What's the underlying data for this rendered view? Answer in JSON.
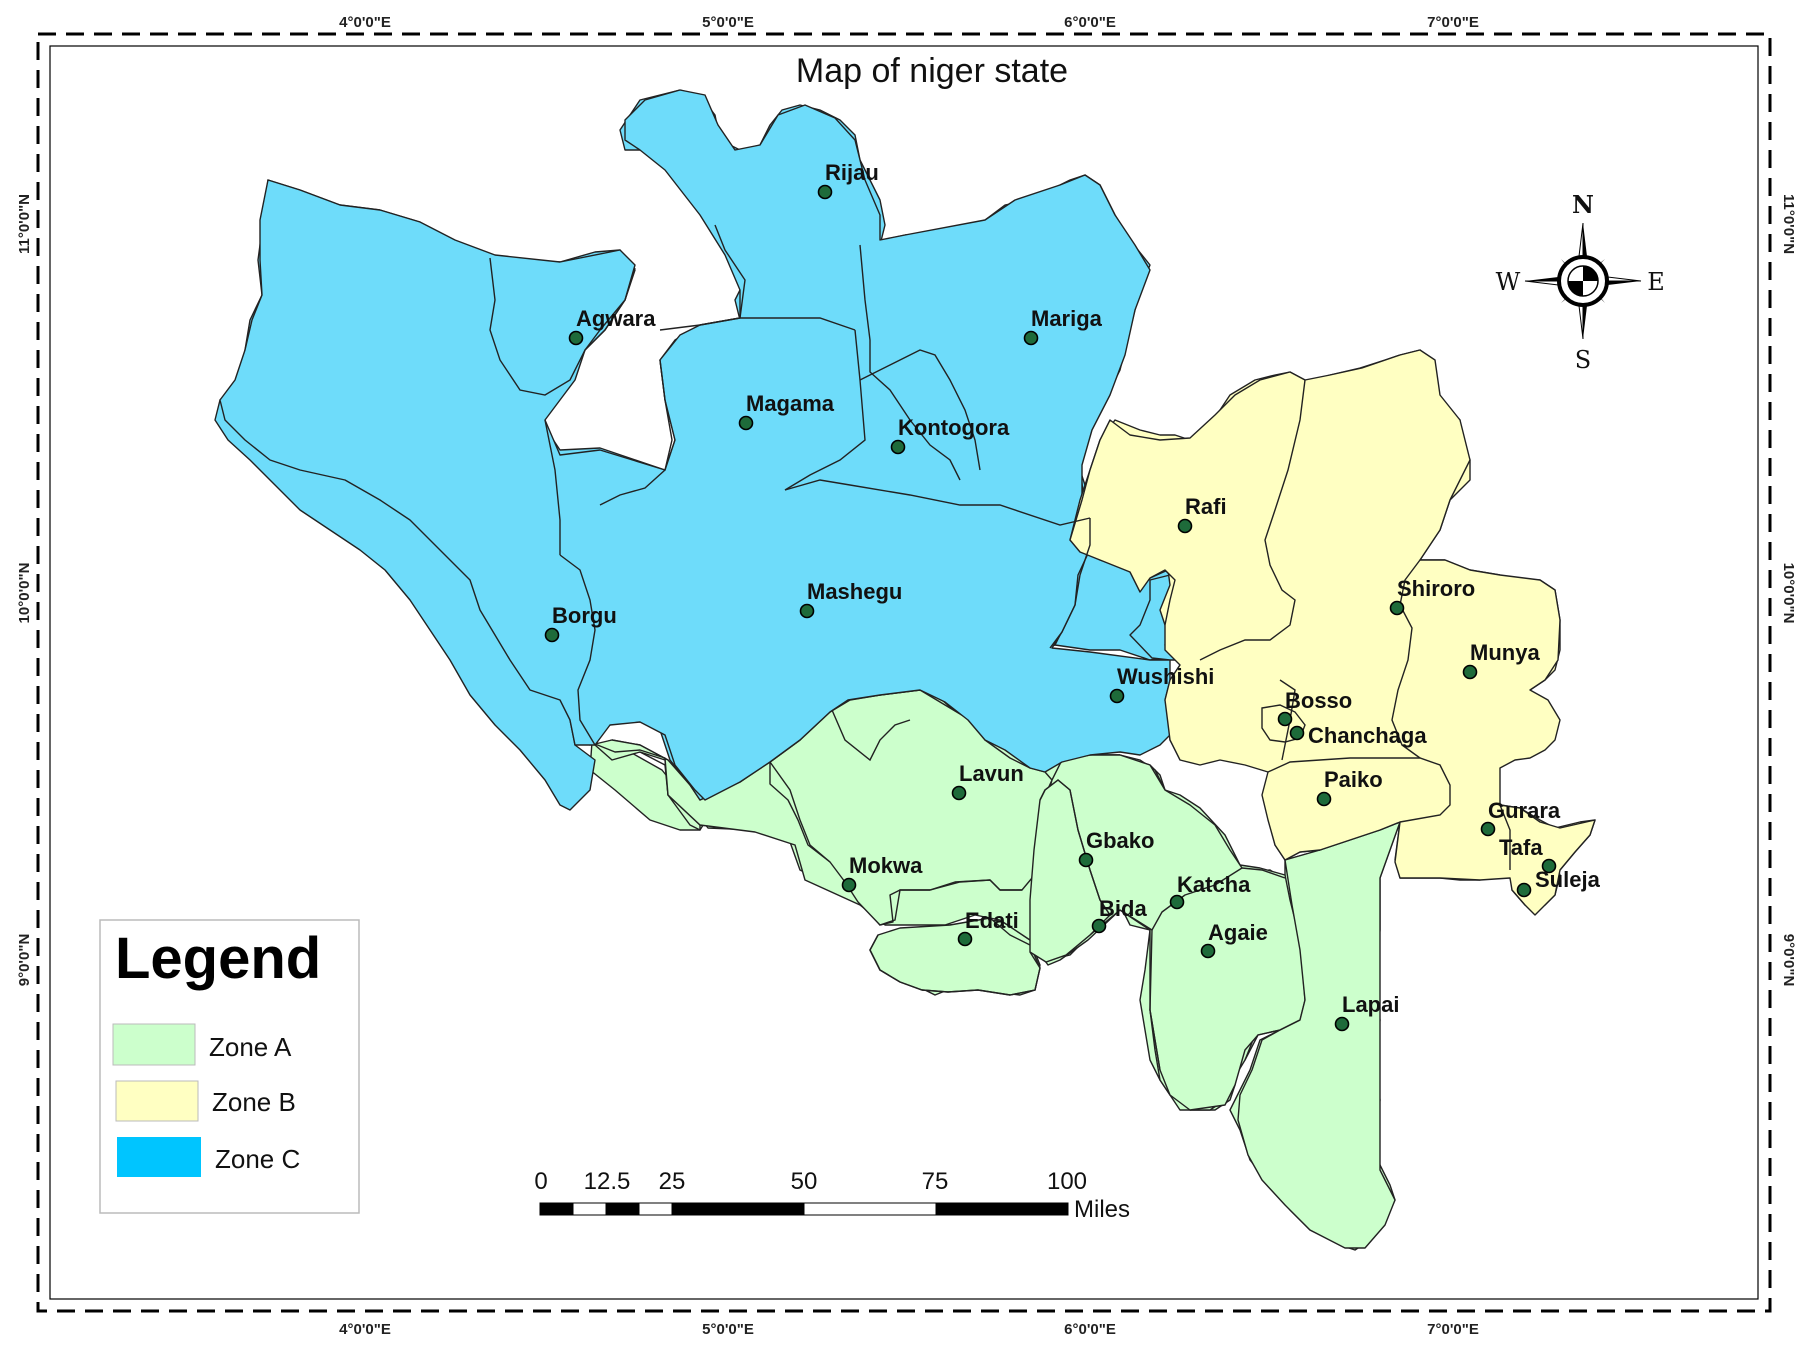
{
  "title": "Map of niger state",
  "colors": {
    "zone_a": "#ccffcc",
    "zone_b": "#ffffc2",
    "zone_c": "#6edcfa",
    "zone_c_legend": "#00c5ff",
    "dot": "#1e6b3a"
  },
  "coordinates": {
    "lon": [
      "4°0'0\"E",
      "5°0'0\"E",
      "6°0'0\"E",
      "7°0'0\"E"
    ],
    "lat": [
      "11°0'0\"N",
      "10°0'0\"N",
      "9°0'0\"N"
    ]
  },
  "compass": {
    "n": "N",
    "s": "S",
    "e": "E",
    "w": "W",
    "icon": "compass-rose-icon"
  },
  "legend": {
    "title": "Legend",
    "items": [
      {
        "label": "Zone A",
        "color": "#ccffcc"
      },
      {
        "label": "Zone B",
        "color": "#ffffc2"
      },
      {
        "label": "Zone C",
        "color": "#00c5ff"
      }
    ]
  },
  "scale_bar": {
    "ticks": [
      "0",
      "12.5",
      "25",
      "50",
      "75",
      "100"
    ],
    "unit": "Miles"
  },
  "places": [
    {
      "name": "Rijau",
      "zone": "C"
    },
    {
      "name": "Agwara",
      "zone": "C"
    },
    {
      "name": "Mariga",
      "zone": "C"
    },
    {
      "name": "Magama",
      "zone": "C"
    },
    {
      "name": "Kontogora",
      "zone": "C"
    },
    {
      "name": "Mashegu",
      "zone": "C"
    },
    {
      "name": "Borgu",
      "zone": "C"
    },
    {
      "name": "Wushishi",
      "zone": "C"
    },
    {
      "name": "Rafi",
      "zone": "B"
    },
    {
      "name": "Shiroro",
      "zone": "B"
    },
    {
      "name": "Munya",
      "zone": "B"
    },
    {
      "name": "Bosso",
      "zone": "B"
    },
    {
      "name": "Chanchaga",
      "zone": "B"
    },
    {
      "name": "Paiko",
      "zone": "B"
    },
    {
      "name": "Gurara",
      "zone": "B"
    },
    {
      "name": "Tafa",
      "zone": "B"
    },
    {
      "name": "Suleja",
      "zone": "B"
    },
    {
      "name": "Lavun",
      "zone": "A"
    },
    {
      "name": "Mokwa",
      "zone": "A"
    },
    {
      "name": "Gbako",
      "zone": "A"
    },
    {
      "name": "Katcha",
      "zone": "A"
    },
    {
      "name": "Bida",
      "zone": "A"
    },
    {
      "name": "Edati",
      "zone": "A"
    },
    {
      "name": "Agaie",
      "zone": "A"
    },
    {
      "name": "Lapai",
      "zone": "A"
    }
  ]
}
